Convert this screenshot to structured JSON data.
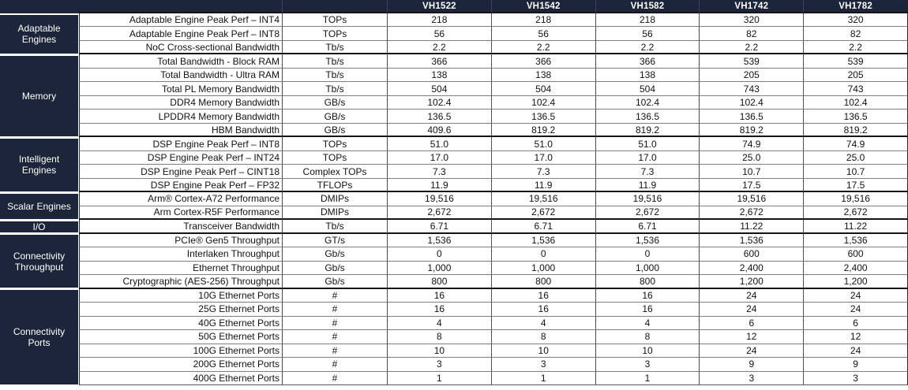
{
  "table": {
    "header": {
      "device_columns": [
        "VH1522",
        "VH1542",
        "VH1582",
        "VH1742",
        "VH1782"
      ]
    },
    "colors": {
      "navy_header_bg": "#1c2539",
      "grid_line_vertical": "#4d4d4d",
      "grid_line_horizontal": "#7f7f7f",
      "group_divider": "#141414",
      "text_dark": "#121212",
      "text_light": "#ffffff"
    },
    "groups": [
      {
        "label": "Adaptable Engines",
        "rows": [
          {
            "parameter": "Adaptable Engine Peak Perf – INT4",
            "units": "TOPs",
            "values": [
              "218",
              "218",
              "218",
              "320",
              "320"
            ]
          },
          {
            "parameter": "Adaptable Engine Peak Perf – INT8",
            "units": "TOPs",
            "values": [
              "56",
              "56",
              "56",
              "82",
              "82"
            ]
          },
          {
            "parameter": "NoC Cross-sectional Bandwidth",
            "units": "Tb/s",
            "values": [
              "2.2",
              "2.2",
              "2.2",
              "2.2",
              "2.2"
            ]
          }
        ]
      },
      {
        "label": "Memory",
        "rows": [
          {
            "parameter": "Total Bandwidth - Block RAM",
            "units": "Tb/s",
            "values": [
              "366",
              "366",
              "366",
              "539",
              "539"
            ]
          },
          {
            "parameter": "Total Bandwidth - Ultra RAM",
            "units": "Tb/s",
            "values": [
              "138",
              "138",
              "138",
              "205",
              "205"
            ]
          },
          {
            "parameter": "Total PL Memory Bandwidth",
            "units": "Tb/s",
            "values": [
              "504",
              "504",
              "504",
              "743",
              "743"
            ]
          },
          {
            "parameter": "DDR4 Memory Bandwidth",
            "units": "GB/s",
            "values": [
              "102.4",
              "102.4",
              "102.4",
              "102.4",
              "102.4"
            ]
          },
          {
            "parameter": "LPDDR4 Memory Bandwidth",
            "units": "GB/s",
            "values": [
              "136.5",
              "136.5",
              "136.5",
              "136.5",
              "136.5"
            ]
          },
          {
            "parameter": "HBM Bandwidth",
            "units": "GB/s",
            "values": [
              "409.6",
              "819.2",
              "819.2",
              "819.2",
              "819.2"
            ]
          }
        ]
      },
      {
        "label": "Intelligent Engines",
        "rows": [
          {
            "parameter": "DSP Engine Peak Perf – INT8",
            "units": "TOPs",
            "values": [
              "51.0",
              "51.0",
              "51.0",
              "74.9",
              "74.9"
            ]
          },
          {
            "parameter": "DSP Engine Peak Perf – INT24",
            "units": "TOPs",
            "values": [
              "17.0",
              "17.0",
              "17.0",
              "25.0",
              "25.0"
            ]
          },
          {
            "parameter": "DSP Engine Peak Perf – CINT18",
            "units": "Complex TOPs",
            "values": [
              "7.3",
              "7.3",
              "7.3",
              "10.7",
              "10.7"
            ]
          },
          {
            "parameter": "DSP Engine Peak Perf – FP32",
            "units": "TFLOPs",
            "values": [
              "11.9",
              "11.9",
              "11.9",
              "17.5",
              "17.5"
            ]
          }
        ]
      },
      {
        "label": "Scalar Engines",
        "rows": [
          {
            "parameter": "Arm® Cortex-A72 Performance",
            "units": "DMIPs",
            "values": [
              "19,516",
              "19,516",
              "19,516",
              "19,516",
              "19,516"
            ]
          },
          {
            "parameter": "Arm Cortex-R5F Performance",
            "units": "DMIPs",
            "values": [
              "2,672",
              "2,672",
              "2,672",
              "2,672",
              "2,672"
            ]
          }
        ]
      },
      {
        "label": "I/O",
        "rows": [
          {
            "parameter": "Transceiver Bandwidth",
            "units": "Tb/s",
            "values": [
              "6.71",
              "6.71",
              "6.71",
              "11.22",
              "11.22"
            ]
          }
        ]
      },
      {
        "label": "Connectivity Throughput",
        "rows": [
          {
            "parameter": "PCIe® Gen5 Throughput",
            "units": "GT/s",
            "values": [
              "1,536",
              "1,536",
              "1,536",
              "1,536",
              "1,536"
            ]
          },
          {
            "parameter": "Interlaken Throughput",
            "units": "Gb/s",
            "values": [
              "0",
              "0",
              "0",
              "600",
              "600"
            ]
          },
          {
            "parameter": "Ethernet Throughput",
            "units": "Gb/s",
            "values": [
              "1,000",
              "1,000",
              "1,000",
              "2,400",
              "2,400"
            ]
          },
          {
            "parameter": "Cryptographic (AES-256) Throughput",
            "units": "Gb/s",
            "values": [
              "800",
              "800",
              "800",
              "1,200",
              "1,200"
            ]
          }
        ]
      },
      {
        "label": "Connectivity Ports",
        "rows": [
          {
            "parameter": "10G Ethernet Ports",
            "units": "#",
            "values": [
              "16",
              "16",
              "16",
              "24",
              "24"
            ]
          },
          {
            "parameter": "25G Ethernet Ports",
            "units": "#",
            "values": [
              "16",
              "16",
              "16",
              "24",
              "24"
            ]
          },
          {
            "parameter": "40G Ethernet Ports",
            "units": "#",
            "values": [
              "4",
              "4",
              "4",
              "6",
              "6"
            ]
          },
          {
            "parameter": "50G Ethernet Ports",
            "units": "#",
            "values": [
              "8",
              "8",
              "8",
              "12",
              "12"
            ]
          },
          {
            "parameter": "100G Ethernet Ports",
            "units": "#",
            "values": [
              "10",
              "10",
              "10",
              "24",
              "24"
            ]
          },
          {
            "parameter": "200G Ethernet Ports",
            "units": "#",
            "values": [
              "3",
              "3",
              "3",
              "9",
              "9"
            ]
          },
          {
            "parameter": "400G Ethernet Ports",
            "units": "#",
            "values": [
              "1",
              "1",
              "1",
              "3",
              "3"
            ]
          }
        ]
      }
    ]
  }
}
